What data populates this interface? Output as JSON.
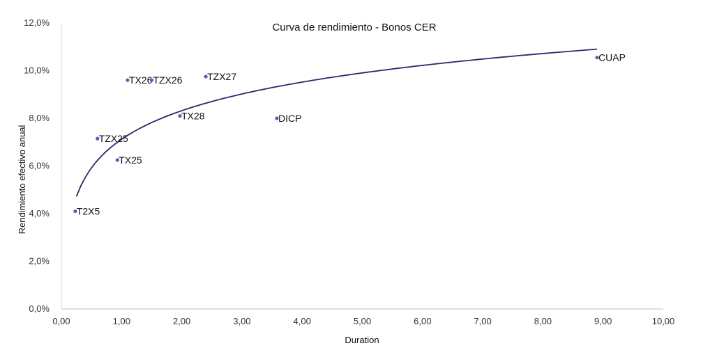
{
  "chart_data": {
    "type": "scatter",
    "title": "Curva de rendimiento - Bonos CER",
    "xlabel": "Duration",
    "ylabel": "Rendimiento efectivo anual",
    "xlim": [
      0,
      10
    ],
    "ylim": [
      0,
      12
    ],
    "x_ticks": [
      "0,00",
      "1,00",
      "2,00",
      "3,00",
      "4,00",
      "5,00",
      "6,00",
      "7,00",
      "8,00",
      "9,00",
      "10,00"
    ],
    "y_ticks": [
      "0,0%",
      "2,0%",
      "4,0%",
      "6,0%",
      "8,0%",
      "10,0%",
      "12,0%"
    ],
    "grid": false,
    "colors": {
      "points": "#6a4fc7",
      "trend": "#3b1f6e"
    },
    "series": [
      {
        "points": [
          {
            "label": "T2X5",
            "x": 0.23,
            "y": 4.1
          },
          {
            "label": "TZX25",
            "x": 0.6,
            "y": 7.15
          },
          {
            "label": "TX25",
            "x": 0.93,
            "y": 6.25
          },
          {
            "label": "TX26",
            "x": 1.1,
            "y": 9.6
          },
          {
            "label": "TZX26",
            "x": 1.5,
            "y": 9.6
          },
          {
            "label": "TX28",
            "x": 1.97,
            "y": 8.1
          },
          {
            "label": "TZX27",
            "x": 2.4,
            "y": 9.75
          },
          {
            "label": "DICP",
            "x": 3.58,
            "y": 8.0
          },
          {
            "label": "CUAP",
            "x": 8.9,
            "y": 10.55
          }
        ]
      }
    ],
    "trendline": {
      "type": "logarithmic",
      "a": 7.12,
      "b": 1.73,
      "x_range": [
        0.25,
        8.9
      ]
    }
  }
}
